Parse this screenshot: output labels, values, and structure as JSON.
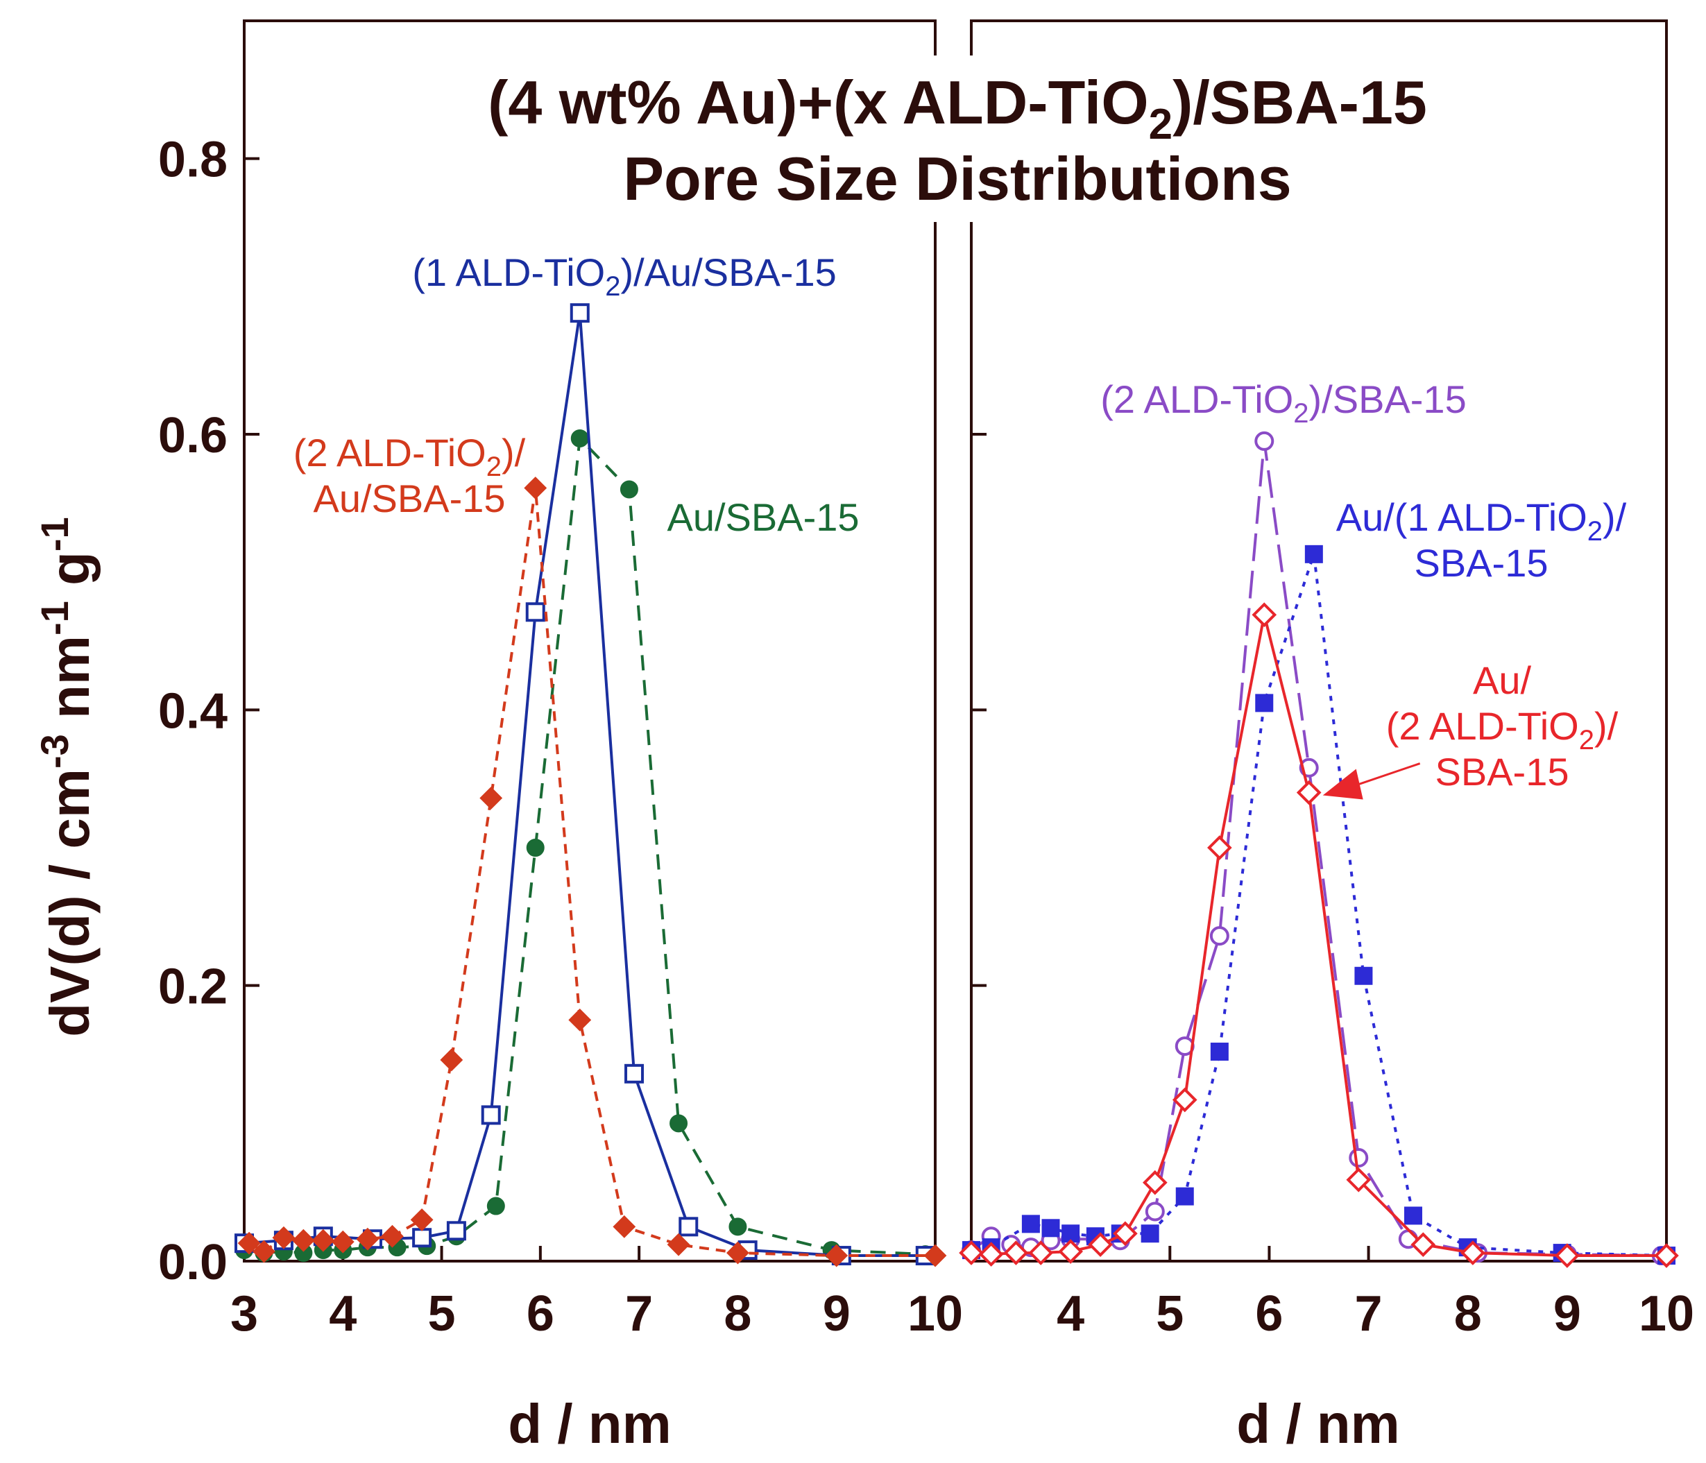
{
  "chart_data": [
    {
      "type": "line",
      "panel": "left",
      "xlabel": "d / nm",
      "ylabel": "dV(d) / cm-3 nm-1 g-1",
      "xlim": [
        3,
        10
      ],
      "ylim": [
        0,
        0.9
      ],
      "xticks": [
        "3",
        "4",
        "5",
        "6",
        "7",
        "8",
        "9",
        "10"
      ],
      "yticks": [
        "0.0",
        "0.2",
        "0.4",
        "0.6",
        "0.8"
      ],
      "grid": false,
      "series": [
        {
          "name": "Au/SBA-15",
          "color": "#1a6b35",
          "marker": "filled-circle",
          "line": "dashed",
          "x": [
            3.0,
            3.2,
            3.4,
            3.6,
            3.8,
            4.0,
            4.25,
            4.55,
            4.85,
            5.15,
            5.55,
            5.95,
            6.4,
            6.9,
            7.4,
            8.0,
            8.95,
            9.9
          ],
          "y": [
            0.008,
            0.006,
            0.007,
            0.006,
            0.008,
            0.008,
            0.01,
            0.01,
            0.011,
            0.018,
            0.04,
            0.3,
            0.597,
            0.56,
            0.1,
            0.025,
            0.008,
            0.005
          ]
        },
        {
          "name": "(1 ALD-TiO2)/Au/SBA-15",
          "color": "#1a2f9f",
          "marker": "open-square",
          "line": "solid",
          "x": [
            3.0,
            3.4,
            3.8,
            4.3,
            4.8,
            5.15,
            5.5,
            5.95,
            6.4,
            6.95,
            7.5,
            8.1,
            9.05,
            9.9
          ],
          "y": [
            0.013,
            0.015,
            0.018,
            0.016,
            0.017,
            0.022,
            0.106,
            0.471,
            0.688,
            0.136,
            0.025,
            0.008,
            0.004,
            0.004
          ]
        },
        {
          "name": "(2 ALD-TiO2)/Au/SBA-15",
          "color": "#d33a1c",
          "marker": "filled-diamond",
          "line": "dashed-short",
          "x": [
            3.05,
            3.2,
            3.4,
            3.6,
            3.8,
            4.0,
            4.25,
            4.5,
            4.8,
            5.1,
            5.5,
            5.95,
            6.4,
            6.85,
            7.4,
            8.0,
            9.0,
            10.0
          ],
          "y": [
            0.013,
            0.007,
            0.017,
            0.015,
            0.015,
            0.014,
            0.016,
            0.018,
            0.03,
            0.146,
            0.336,
            0.561,
            0.175,
            0.025,
            0.012,
            0.006,
            0.004,
            0.004
          ]
        }
      ],
      "annotations": [
        {
          "text": "(1 ALD-TiO2)/Au/SBA-15",
          "lines": [
            [
              "(1 ALD-TiO",
              "2",
              ")/Au/SBA-15"
            ]
          ],
          "color": "#1a2f9f"
        },
        {
          "text": "(2 ALD-TiO2)/ Au/SBA-15",
          "lines": [
            [
              "(2 ALD-TiO",
              "2",
              ")/"
            ],
            [
              "Au/SBA-15"
            ]
          ],
          "color": "#d33a1c"
        },
        {
          "text": "Au/SBA-15",
          "lines": [
            [
              "Au/SBA-15"
            ]
          ],
          "color": "#1a6b35"
        }
      ]
    },
    {
      "type": "line",
      "panel": "right",
      "xlabel": "d / nm",
      "ylabel": "",
      "xlim": [
        3,
        10
      ],
      "ylim": [
        0,
        0.9
      ],
      "xticks": [
        "4",
        "5",
        "6",
        "7",
        "8",
        "9",
        "10"
      ],
      "yticks": [],
      "grid": false,
      "series": [
        {
          "name": "(2 ALD-TiO2)/SBA-15",
          "color": "#8a4bc6",
          "marker": "open-circle",
          "line": "long-dash",
          "x": [
            3.0,
            3.2,
            3.4,
            3.6,
            3.8,
            4.0,
            4.25,
            4.5,
            4.85,
            5.15,
            5.5,
            5.95,
            6.4,
            6.9,
            7.4,
            8.1,
            9.0,
            9.95
          ],
          "y": [
            0.008,
            0.018,
            0.012,
            0.01,
            0.015,
            0.016,
            0.016,
            0.015,
            0.036,
            0.156,
            0.236,
            0.595,
            0.358,
            0.075,
            0.016,
            0.006,
            0.005,
            0.004
          ]
        },
        {
          "name": "Au/(1 ALD-TiO2)/SBA-15",
          "color": "#2d2bd6",
          "marker": "filled-square",
          "line": "dotted",
          "x": [
            3.0,
            3.2,
            3.6,
            3.8,
            4.0,
            4.25,
            4.5,
            4.8,
            5.15,
            5.5,
            5.95,
            6.45,
            6.95,
            7.45,
            8.0,
            8.95,
            10.0
          ],
          "y": [
            0.008,
            0.01,
            0.027,
            0.024,
            0.02,
            0.018,
            0.02,
            0.02,
            0.047,
            0.152,
            0.405,
            0.513,
            0.207,
            0.033,
            0.01,
            0.006,
            0.004
          ]
        },
        {
          "name": "Au/(2 ALD-TiO2)/SBA-15",
          "color": "#e8262b",
          "marker": "open-diamond",
          "line": "solid",
          "x": [
            3.0,
            3.2,
            3.45,
            3.7,
            4.0,
            4.3,
            4.55,
            4.85,
            5.15,
            5.5,
            5.95,
            6.4,
            6.9,
            7.55,
            8.05,
            9.0,
            10.0
          ],
          "y": [
            0.006,
            0.005,
            0.006,
            0.006,
            0.007,
            0.012,
            0.02,
            0.057,
            0.117,
            0.3,
            0.469,
            0.34,
            0.059,
            0.012,
            0.006,
            0.004,
            0.004
          ]
        }
      ],
      "annotations": [
        {
          "text": "(2 ALD-TiO2)/SBA-15",
          "lines": [
            [
              "(2 ALD-TiO",
              "2",
              ")/SBA-15"
            ]
          ],
          "color": "#8a4bc6"
        },
        {
          "text": "Au/(1 ALD-TiO2)/ SBA-15",
          "lines": [
            [
              "Au/(1 ALD-TiO",
              "2",
              ")/"
            ],
            [
              "SBA-15"
            ]
          ],
          "color": "#2d2bd6"
        },
        {
          "text": "Au/ (2 ALD-TiO2)/ SBA-15",
          "lines": [
            [
              "Au/"
            ],
            [
              "(2 ALD-TiO",
              "2",
              ")/"
            ],
            [
              "SBA-15"
            ]
          ],
          "color": "#e8262b"
        }
      ]
    }
  ],
  "figure": {
    "title_line1_a": "(4 wt% Au)+(x ALD-TiO",
    "title_line1_sub": "2",
    "title_line1_b": ")/SBA-15",
    "title_line2": "Pore Size Distributions",
    "ylabel_a": "dV(d) / cm",
    "ylabel_sup1": "-3",
    "ylabel_b": " nm",
    "ylabel_sup2": "-1",
    "ylabel_c": " g",
    "ylabel_sup3": "-1",
    "xlabel_left": "d / nm",
    "xlabel_right": "d / nm"
  }
}
